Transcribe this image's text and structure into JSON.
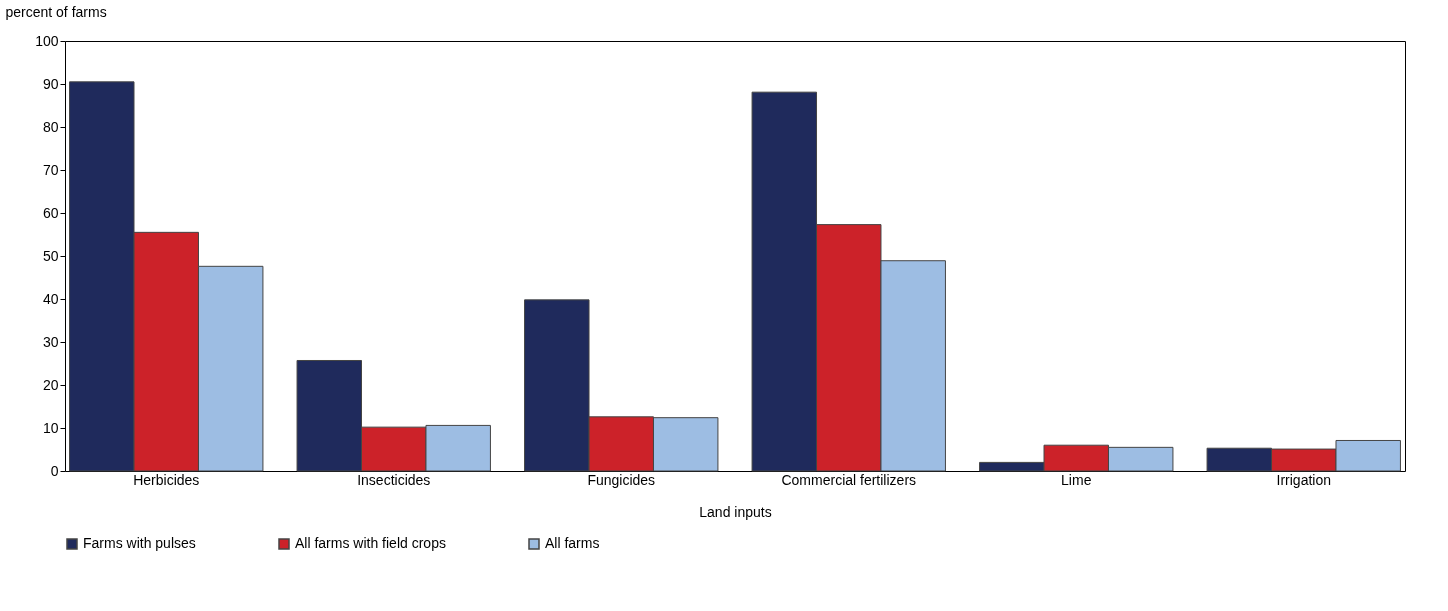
{
  "chart_data": {
    "type": "bar",
    "xlabel": "Land inputs",
    "ylabel": "percent of farms",
    "categories": [
      "Herbicides",
      "Insecticides",
      "Fungicides",
      "Commercial fertilizers",
      "Lime",
      "Irrigation"
    ],
    "series": [
      {
        "name": "Farms with pulses",
        "color": "#1f2a5c",
        "values": [
          90.5,
          25.7,
          39.8,
          88.1,
          2.0,
          5.3
        ]
      },
      {
        "name": "All farms with field crops",
        "color": "#cc2229",
        "values": [
          55.5,
          10.2,
          12.6,
          57.3,
          6.0,
          5.1
        ]
      },
      {
        "name": "All farms",
        "color": "#9dbde3",
        "values": [
          47.6,
          10.6,
          12.4,
          48.9,
          5.5,
          7.1
        ]
      }
    ],
    "ylim": [
      0,
      100
    ],
    "yticks": [
      0,
      10,
      20,
      30,
      40,
      50,
      60,
      70,
      80,
      90,
      100
    ],
    "grid": false,
    "legend": "bottom"
  }
}
